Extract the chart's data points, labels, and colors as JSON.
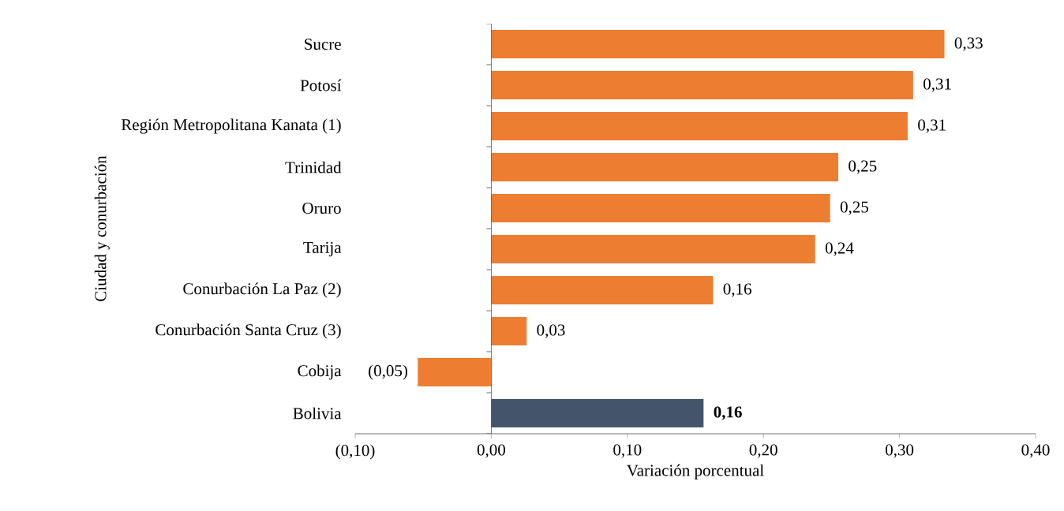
{
  "chart_data": {
    "type": "bar",
    "orientation": "horizontal",
    "xlabel": "Variación porcentual",
    "ylabel": "Ciudad y conurbación",
    "categories": [
      "Sucre",
      "Potosí",
      "Región Metropolitana Kanata (1)",
      "Trinidad",
      "Oruro",
      "Tarija",
      "Conurbación La Paz (2)",
      "Conurbación Santa Cruz (3)",
      "Cobija",
      "Bolivia"
    ],
    "values": [
      0.333,
      0.31,
      0.306,
      0.255,
      0.249,
      0.238,
      0.163,
      0.026,
      -0.054,
      0.156
    ],
    "colors": [
      "#ed7d31",
      "#ed7d31",
      "#ed7d31",
      "#ed7d31",
      "#ed7d31",
      "#ed7d31",
      "#ed7d31",
      "#ed7d31",
      "#ed7d31",
      "#44546a"
    ],
    "value_labels": [
      "0,33",
      "0,31",
      "0,31",
      "0,25",
      "0,25",
      "0,24",
      "0,16",
      "0,03",
      "(0,05)",
      "**0,16**"
    ],
    "xlim": [
      -0.1,
      0.4
    ],
    "xticks": [
      {
        "value": -0.1,
        "label": "(0,10)"
      },
      {
        "value": 0,
        "label": "0,00"
      },
      {
        "value": 0.1,
        "label": "0,10"
      },
      {
        "value": 0.2,
        "label": "0,20"
      },
      {
        "value": 0.3,
        "label": "0,30"
      },
      {
        "value": 0.4,
        "label": "0,40"
      }
    ],
    "tick_labels": [
      "x",
      "y"
    ]
  }
}
